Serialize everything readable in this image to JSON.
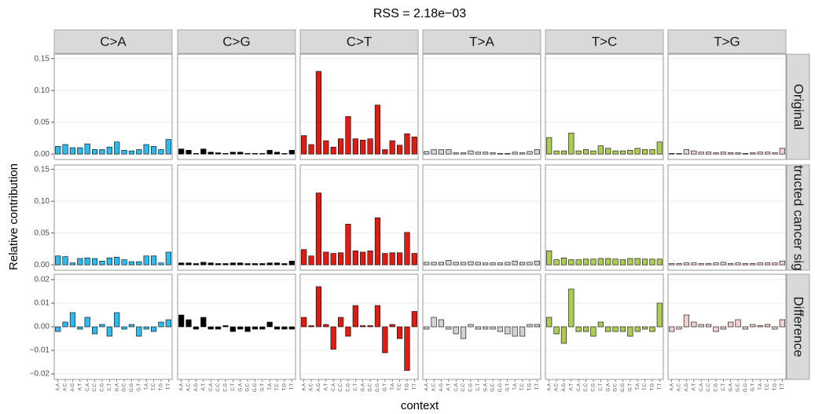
{
  "chart_data": {
    "type": "bar",
    "title": "RSS = 2.18e−03",
    "xlabel": "context",
    "ylabel": "Relative contribution",
    "grid": true,
    "categories": [
      "A.A",
      "A.C",
      "A.G",
      "A.T",
      "C.A",
      "C.C",
      "C.G",
      "C.T",
      "G.A",
      "G.C",
      "G.G",
      "G.T",
      "T.A",
      "T.C",
      "T.G",
      "T.T"
    ],
    "columns": [
      {
        "name": "C>A",
        "color": "#2EBAED"
      },
      {
        "name": "C>G",
        "color": "#000000"
      },
      {
        "name": "C>T",
        "color": "#DE1C14"
      },
      {
        "name": "T>A",
        "color": "#D4D2D2"
      },
      {
        "name": "T>C",
        "color": "#ADCC54"
      },
      {
        "name": "T>G",
        "color": "#F0D0CE"
      }
    ],
    "rows": [
      {
        "name": "Original",
        "ylim": [
          -0.0085,
          0.157
        ],
        "yticks": [
          {
            "value": 0,
            "label": "0.00"
          },
          {
            "value": 0.05,
            "label": "0.05"
          },
          {
            "value": 0.1,
            "label": "0.10"
          },
          {
            "value": 0.15,
            "label": "0.15"
          }
        ],
        "values": [
          [
            0.012,
            0.015,
            0.01,
            0.01,
            0.016,
            0.007,
            0.007,
            0.011,
            0.019,
            0.006,
            0.005,
            0.007,
            0.015,
            0.012,
            0.007,
            0.023
          ],
          [
            0.008,
            0.006,
            0.001,
            0.008,
            0.003,
            0.002,
            0.001,
            0.003,
            0.003,
            0.001,
            0.001,
            0.001,
            0.006,
            0.003,
            0.001,
            0.006
          ],
          [
            0.029,
            0.015,
            0.13,
            0.021,
            0.011,
            0.024,
            0.059,
            0.024,
            0.022,
            0.024,
            0.077,
            0.007,
            0.021,
            0.014,
            0.032,
            0.027
          ],
          [
            0.004,
            0.007,
            0.007,
            0.007,
            0.002,
            0.002,
            0.005,
            0.003,
            0.003,
            0.002,
            0.001,
            0.001,
            0.003,
            0.002,
            0.004,
            0.007
          ],
          [
            0.026,
            0.005,
            0.005,
            0.033,
            0.005,
            0.007,
            0.005,
            0.013,
            0.009,
            0.005,
            0.005,
            0.006,
            0.009,
            0.007,
            0.007,
            0.019
          ],
          [
            0.001,
            0.001,
            0.007,
            0.005,
            0.003,
            0.003,
            0.002,
            0.003,
            0.002,
            0.002,
            0.001,
            0.002,
            0.003,
            0.003,
            0.002,
            0.009
          ]
        ]
      },
      {
        "name": "Reconstructed cancer signatures",
        "ylim": [
          -0.0085,
          0.157
        ],
        "yticks": [
          {
            "value": 0,
            "label": "0.00"
          },
          {
            "value": 0.05,
            "label": "0.05"
          },
          {
            "value": 0.1,
            "label": "0.10"
          },
          {
            "value": 0.15,
            "label": "0.15"
          }
        ],
        "values": [
          [
            0.014,
            0.013,
            0.003,
            0.01,
            0.011,
            0.01,
            0.006,
            0.011,
            0.012,
            0.008,
            0.005,
            0.005,
            0.014,
            0.014,
            0.003,
            0.02
          ],
          [
            0.003,
            0.003,
            0.002,
            0.004,
            0.003,
            0.002,
            0.002,
            0.003,
            0.003,
            0.002,
            0.002,
            0.002,
            0.003,
            0.003,
            0.002,
            0.006
          ],
          [
            0.024,
            0.014,
            0.113,
            0.02,
            0.018,
            0.019,
            0.064,
            0.022,
            0.02,
            0.022,
            0.074,
            0.018,
            0.019,
            0.019,
            0.051,
            0.018
          ],
          [
            0.004,
            0.004,
            0.004,
            0.007,
            0.004,
            0.004,
            0.005,
            0.004,
            0.003,
            0.003,
            0.003,
            0.004,
            0.006,
            0.004,
            0.004,
            0.006
          ],
          [
            0.022,
            0.008,
            0.011,
            0.008,
            0.008,
            0.009,
            0.009,
            0.01,
            0.01,
            0.009,
            0.008,
            0.01,
            0.01,
            0.009,
            0.009,
            0.009
          ],
          [
            0.002,
            0.002,
            0.003,
            0.003,
            0.002,
            0.002,
            0.003,
            0.004,
            0.002,
            0.003,
            0.002,
            0.002,
            0.003,
            0.003,
            0.003,
            0.006
          ]
        ]
      },
      {
        "name": "Difference",
        "ylim": [
          -0.0223,
          0.0223
        ],
        "yticks": [
          {
            "value": -0.02,
            "label": "−0.02"
          },
          {
            "value": -0.01,
            "label": "−0.01"
          },
          {
            "value": 0,
            "label": "0.00"
          },
          {
            "value": 0.01,
            "label": "0.01"
          },
          {
            "value": 0.02,
            "label": "0.02"
          }
        ],
        "values": [
          [
            -0.002,
            0.002,
            0.006,
            -0.001,
            0.004,
            -0.003,
            0.001,
            -0.004,
            0.006,
            -0.001,
            0.001,
            -0.004,
            -0.001,
            -0.002,
            0.002,
            0.003
          ],
          [
            0.005,
            0.003,
            -0.001,
            0.004,
            -0.001,
            -0.001,
            0.0005,
            -0.002,
            -0.001,
            -0.002,
            -0.001,
            -0.001,
            0.002,
            -0.001,
            -0.001,
            -0.001
          ],
          [
            0.004,
            0.0005,
            0.017,
            0.001,
            -0.0095,
            0.004,
            -0.004,
            0.009,
            0.0005,
            0.0005,
            0.009,
            -0.011,
            0.001,
            -0.005,
            -0.0185,
            0.0065
          ],
          [
            -0.001,
            0.004,
            0.003,
            -0.001,
            -0.003,
            -0.005,
            0.001,
            -0.001,
            -0.001,
            -0.001,
            -0.002,
            -0.003,
            -0.004,
            -0.004,
            0.001,
            0.001
          ],
          [
            0.004,
            -0.003,
            -0.007,
            0.016,
            -0.002,
            -0.002,
            -0.004,
            0.002,
            -0.002,
            -0.002,
            -0.002,
            -0.004,
            -0.002,
            -0.001,
            -0.002,
            0.01
          ],
          [
            -0.002,
            -0.001,
            0.005,
            0.002,
            0.001,
            0.001,
            -0.002,
            -0.001,
            0.002,
            0.003,
            -0.001,
            0.001,
            0.0005,
            0.001,
            -0.001,
            0.003
          ]
        ]
      }
    ]
  }
}
